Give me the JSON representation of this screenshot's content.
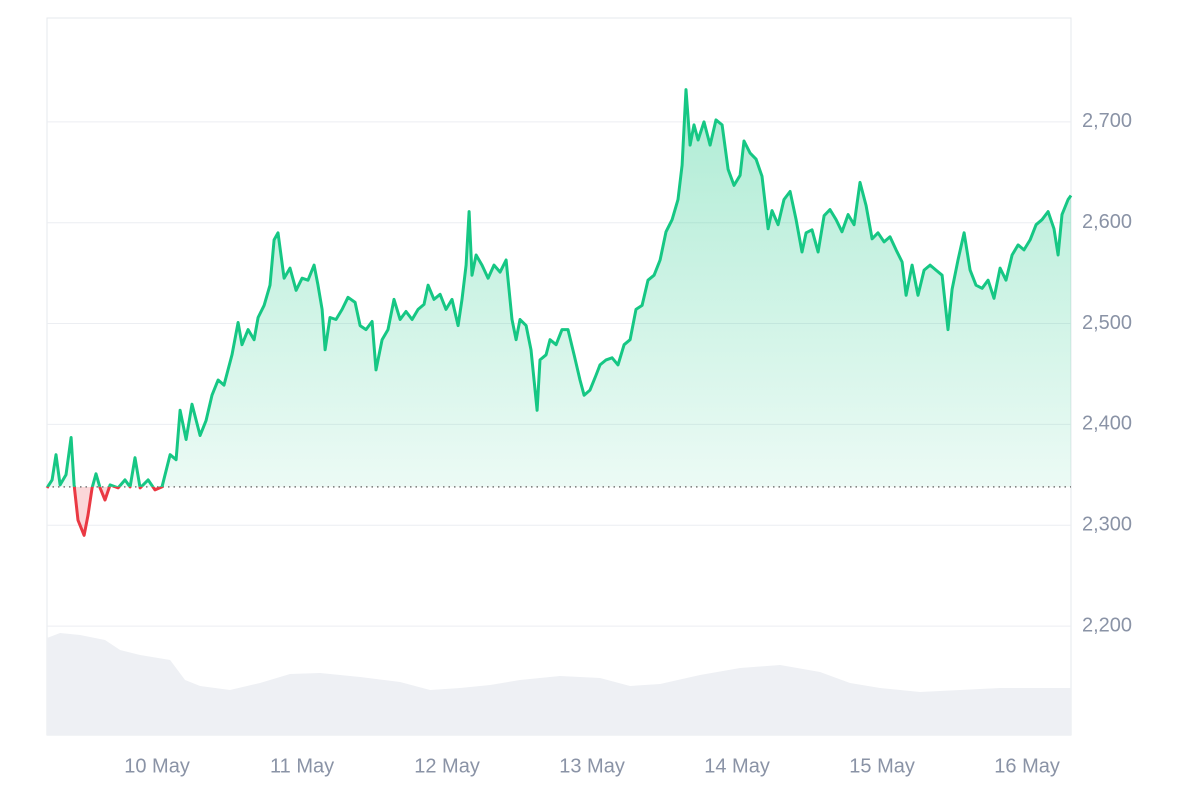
{
  "chart_data": {
    "type": "line",
    "x": [
      9.241,
      9.276,
      9.303,
      9.331,
      9.372,
      9.407,
      9.428,
      9.455,
      9.497,
      9.524,
      9.552,
      9.579,
      9.607,
      9.641,
      9.676,
      9.731,
      9.779,
      9.814,
      9.848,
      9.883,
      9.938,
      9.986,
      10.034,
      10.09,
      10.131,
      10.159,
      10.2,
      10.241,
      10.297,
      10.338,
      10.379,
      10.421,
      10.462,
      10.517,
      10.559,
      10.586,
      10.628,
      10.669,
      10.697,
      10.738,
      10.779,
      10.807,
      10.834,
      10.876,
      10.917,
      10.959,
      11.0,
      11.041,
      11.083,
      11.11,
      11.138,
      11.159,
      11.193,
      11.234,
      11.276,
      11.317,
      11.366,
      11.4,
      11.441,
      11.483,
      11.51,
      11.552,
      11.593,
      11.634,
      11.676,
      11.717,
      11.759,
      11.8,
      11.841,
      11.869,
      11.91,
      11.952,
      11.993,
      12.034,
      12.076,
      12.103,
      12.131,
      12.152,
      12.172,
      12.2,
      12.241,
      12.283,
      12.324,
      12.366,
      12.407,
      12.448,
      12.476,
      12.503,
      12.545,
      12.579,
      12.621,
      12.641,
      12.683,
      12.71,
      12.752,
      12.793,
      12.834,
      12.876,
      12.917,
      12.945,
      12.986,
      13.028,
      13.055,
      13.097,
      13.138,
      13.179,
      13.221,
      13.262,
      13.303,
      13.345,
      13.386,
      13.428,
      13.469,
      13.51,
      13.552,
      13.593,
      13.621,
      13.648,
      13.676,
      13.703,
      13.731,
      13.772,
      13.814,
      13.855,
      13.897,
      13.938,
      13.979,
      14.021,
      14.048,
      14.09,
      14.131,
      14.172,
      14.214,
      14.241,
      14.283,
      14.324,
      14.366,
      14.407,
      14.448,
      14.476,
      14.517,
      14.559,
      14.6,
      14.641,
      14.683,
      14.724,
      14.766,
      14.807,
      14.848,
      14.89,
      14.931,
      14.972,
      15.014,
      15.055,
      15.097,
      15.138,
      15.166,
      15.207,
      15.248,
      15.29,
      15.331,
      15.372,
      15.414,
      15.455,
      15.483,
      15.524,
      15.566,
      15.607,
      15.648,
      15.69,
      15.731,
      15.772,
      15.814,
      15.855,
      15.897,
      15.938,
      15.979,
      16.021,
      16.062,
      16.103,
      16.145,
      16.186,
      16.214,
      16.241,
      16.283,
      16.303
    ],
    "series": [
      {
        "color": "#16c784",
        "down_color": "#ea3943",
        "values": [
          2337,
          2345,
          2370,
          2340,
          2350,
          2387,
          2340,
          2305,
          2290,
          2310,
          2337,
          2351,
          2337,
          2325,
          2340,
          2337,
          2345,
          2338,
          2367,
          2337,
          2345,
          2335,
          2338,
          2370,
          2365,
          2414,
          2385,
          2420,
          2389,
          2404,
          2429,
          2444,
          2439,
          2469,
          2501,
          2479,
          2494,
          2484,
          2506,
          2518,
          2538,
          2583,
          2590,
          2545,
          2555,
          2533,
          2545,
          2543,
          2558,
          2538,
          2514,
          2474,
          2506,
          2504,
          2514,
          2526,
          2521,
          2498,
          2494,
          2502,
          2454,
          2484,
          2494,
          2524,
          2504,
          2512,
          2504,
          2514,
          2519,
          2538,
          2524,
          2529,
          2514,
          2524,
          2498,
          2524,
          2558,
          2611,
          2548,
          2568,
          2558,
          2545,
          2558,
          2551,
          2563,
          2504,
          2484,
          2504,
          2498,
          2474,
          2414,
          2464,
          2469,
          2484,
          2479,
          2494,
          2494,
          2469,
          2444,
          2429,
          2434,
          2449,
          2459,
          2464,
          2466,
          2459,
          2479,
          2484,
          2514,
          2518,
          2543,
          2548,
          2563,
          2591,
          2603,
          2623,
          2657,
          2732,
          2677,
          2697,
          2682,
          2700,
          2677,
          2702,
          2697,
          2653,
          2637,
          2647,
          2681,
          2669,
          2663,
          2646,
          2594,
          2612,
          2598,
          2623,
          2631,
          2603,
          2571,
          2590,
          2593,
          2571,
          2607,
          2613,
          2603,
          2591,
          2608,
          2598,
          2640,
          2617,
          2584,
          2590,
          2581,
          2586,
          2573,
          2561,
          2528,
          2558,
          2528,
          2553,
          2558,
          2553,
          2548,
          2494,
          2534,
          2563,
          2590,
          2553,
          2538,
          2535,
          2543,
          2525,
          2555,
          2543,
          2568,
          2578,
          2573,
          2583,
          2598,
          2603,
          2611,
          2594,
          2568,
          2608,
          2623,
          2627
        ]
      }
    ],
    "baseline": 2338,
    "volume": {
      "color": "#eef0f4",
      "x": [
        9.241,
        9.331,
        9.469,
        9.641,
        9.745,
        9.883,
        10.09,
        10.193,
        10.297,
        10.503,
        10.71,
        10.917,
        11.124,
        11.4,
        11.676,
        11.883,
        12.09,
        12.297,
        12.503,
        12.779,
        13.055,
        13.262,
        13.469,
        13.745,
        14.021,
        14.297,
        14.572,
        14.779,
        14.986,
        15.262,
        15.538,
        15.814,
        16.09,
        16.303
      ],
      "values": [
        97,
        102,
        100,
        95,
        85,
        80,
        75,
        55,
        49,
        45,
        52,
        61,
        62,
        58,
        53,
        45,
        47,
        50,
        55,
        59,
        57,
        49,
        51,
        60,
        67,
        70,
        63,
        52,
        47,
        43,
        45,
        47,
        47,
        47
      ]
    },
    "xlim": [
      9.241,
      16.303
    ],
    "xticks": [
      {
        "value": 10,
        "label": "10 May"
      },
      {
        "value": 11,
        "label": "11 May"
      },
      {
        "value": 12,
        "label": "12 May"
      },
      {
        "value": 13,
        "label": "13 May"
      },
      {
        "value": 14,
        "label": "14 May"
      },
      {
        "value": 15,
        "label": "15 May"
      },
      {
        "value": 16,
        "label": "16 May"
      }
    ],
    "ylim": [
      2092,
      2803
    ],
    "yticks": [
      {
        "value": 2200,
        "label": "2,200"
      },
      {
        "value": 2300,
        "label": "2,300"
      },
      {
        "value": 2400,
        "label": "2,400"
      },
      {
        "value": 2500,
        "label": "2,500"
      },
      {
        "value": 2600,
        "label": "2,600"
      },
      {
        "value": 2700,
        "label": "2,700"
      }
    ],
    "y2lim": [
      0,
      717
    ],
    "grid": true
  }
}
